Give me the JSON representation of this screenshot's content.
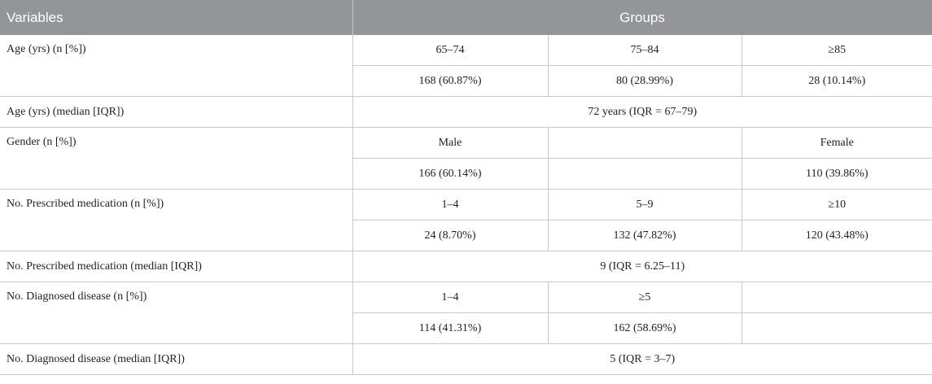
{
  "header": {
    "variables": "Variables",
    "groups": "Groups"
  },
  "rows": {
    "age_n": {
      "label": "Age (yrs) (n [%])",
      "groups": [
        "65–74",
        "75–84",
        "≥85"
      ],
      "values": [
        "168 (60.87%)",
        "80 (28.99%)",
        "28 (10.14%)"
      ]
    },
    "age_median": {
      "label": "Age (yrs) (median [IQR])",
      "value": "72 years (IQR = 67–79)"
    },
    "gender": {
      "label": "Gender (n [%])",
      "groups": [
        "Male",
        "",
        "Female"
      ],
      "values": [
        "166 (60.14%)",
        "",
        "110 (39.86%)"
      ]
    },
    "med_n": {
      "label": "No. Prescribed medication (n [%])",
      "groups": [
        "1–4",
        "5–9",
        "≥10"
      ],
      "values": [
        "24 (8.70%)",
        "132 (47.82%)",
        "120 (43.48%)"
      ]
    },
    "med_median": {
      "label": "No. Prescribed medication (median [IQR])",
      "value": "9 (IQR = 6.25–11)"
    },
    "disease_n": {
      "label": "No. Diagnosed disease (n [%])",
      "groups": [
        "1–4",
        "≥5",
        ""
      ],
      "values": [
        "114 (41.31%)",
        "162 (58.69%)",
        ""
      ]
    },
    "disease_median": {
      "label": "No. Diagnosed disease (median [IQR])",
      "value": "5 (IQR = 3–7)"
    }
  }
}
